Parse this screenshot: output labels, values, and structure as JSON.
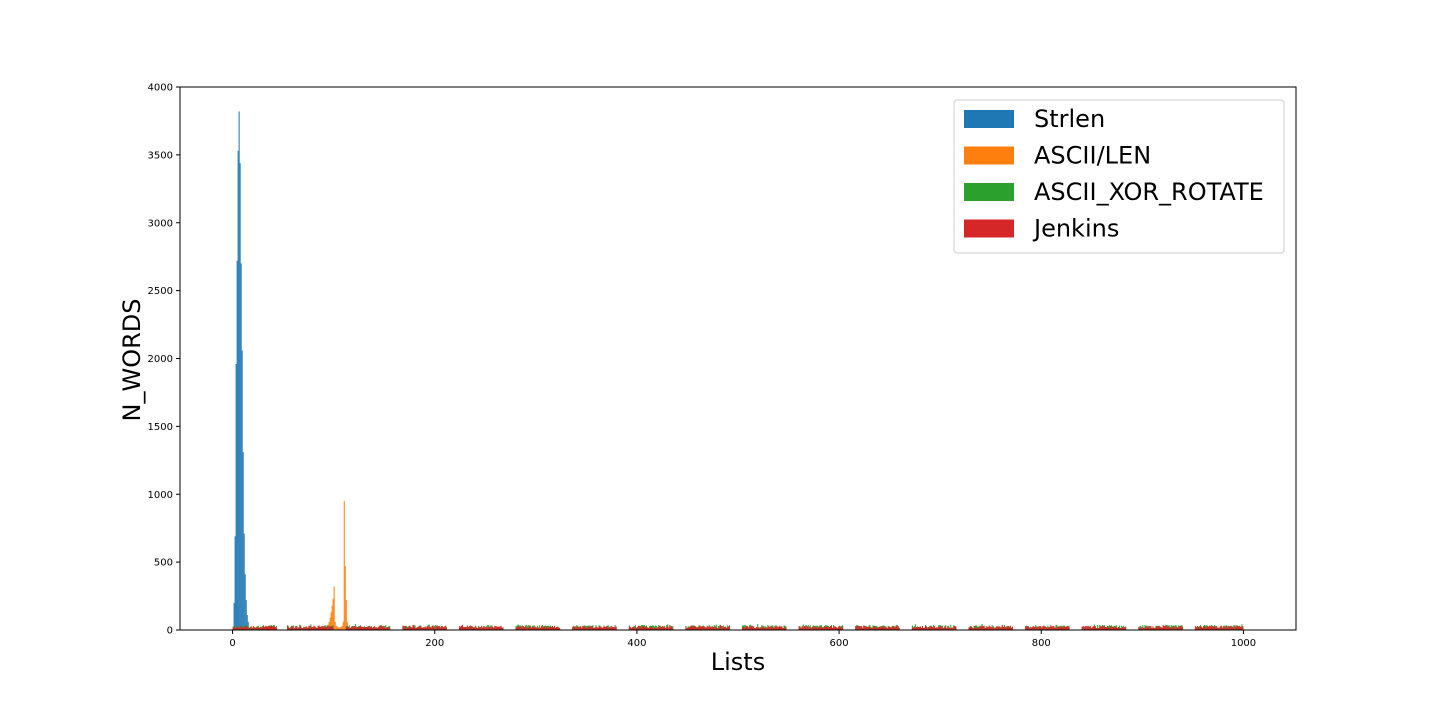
{
  "chart_data": {
    "type": "bar",
    "title": "",
    "xlabel": "Lists",
    "ylabel": "N_WORDS",
    "xlim": [
      -52,
      1052
    ],
    "ylim": [
      0,
      4000
    ],
    "x_ticks": [
      0,
      200,
      400,
      600,
      800,
      1000
    ],
    "y_ticks": [
      0,
      500,
      1000,
      1500,
      2000,
      2500,
      3000,
      3500,
      4000
    ],
    "grid": false,
    "legend_position": "top-right",
    "series": [
      {
        "name": "Strlen",
        "color": "#1f77b4",
        "x": [
          1,
          2,
          3,
          4,
          5,
          6,
          7,
          8,
          9,
          10,
          11,
          12,
          13,
          14,
          15
        ],
        "values": [
          200,
          690,
          1960,
          2720,
          3530,
          3820,
          3440,
          2700,
          2060,
          1310,
          710,
          410,
          220,
          110,
          60
        ]
      },
      {
        "name": "ASCII/LEN",
        "color": "#ff7f0e",
        "x": [
          92,
          93,
          94,
          95,
          96,
          97,
          98,
          99,
          100,
          101,
          102,
          103,
          104,
          105,
          106,
          107,
          108,
          109,
          110,
          111,
          112,
          113,
          114
        ],
        "values": [
          20,
          30,
          40,
          60,
          90,
          130,
          180,
          230,
          320,
          60,
          30,
          25,
          20,
          20,
          20,
          25,
          30,
          60,
          950,
          470,
          220,
          60,
          20
        ]
      },
      {
        "name": "ASCII_XOR_ROTATE",
        "color": "#2ca02c",
        "band": {
          "x_start": 0,
          "x_end": 1000,
          "mean": 25,
          "jitter": 12,
          "spike_max": 45
        },
        "gaps": [
          [
            44,
            54
          ],
          [
            100,
            112
          ],
          [
            156,
            168
          ],
          [
            212,
            224
          ],
          [
            268,
            280
          ],
          [
            324,
            336
          ],
          [
            380,
            392
          ],
          [
            436,
            448
          ],
          [
            492,
            504
          ],
          [
            548,
            560
          ],
          [
            604,
            616
          ],
          [
            660,
            672
          ],
          [
            716,
            728
          ],
          [
            772,
            784
          ],
          [
            828,
            840
          ],
          [
            884,
            896
          ],
          [
            940,
            952
          ]
        ]
      },
      {
        "name": "Jenkins",
        "color": "#d62728",
        "band": {
          "x_start": 0,
          "x_end": 1000,
          "mean": 22,
          "jitter": 10,
          "spike_max": 40
        },
        "gaps": [
          [
            44,
            54
          ],
          [
            100,
            112
          ],
          [
            156,
            168
          ],
          [
            212,
            224
          ],
          [
            268,
            280
          ],
          [
            324,
            336
          ],
          [
            380,
            392
          ],
          [
            436,
            448
          ],
          [
            492,
            504
          ],
          [
            548,
            560
          ],
          [
            604,
            616
          ],
          [
            660,
            672
          ],
          [
            716,
            728
          ],
          [
            772,
            784
          ],
          [
            828,
            840
          ],
          [
            884,
            896
          ],
          [
            940,
            952
          ]
        ]
      }
    ]
  }
}
